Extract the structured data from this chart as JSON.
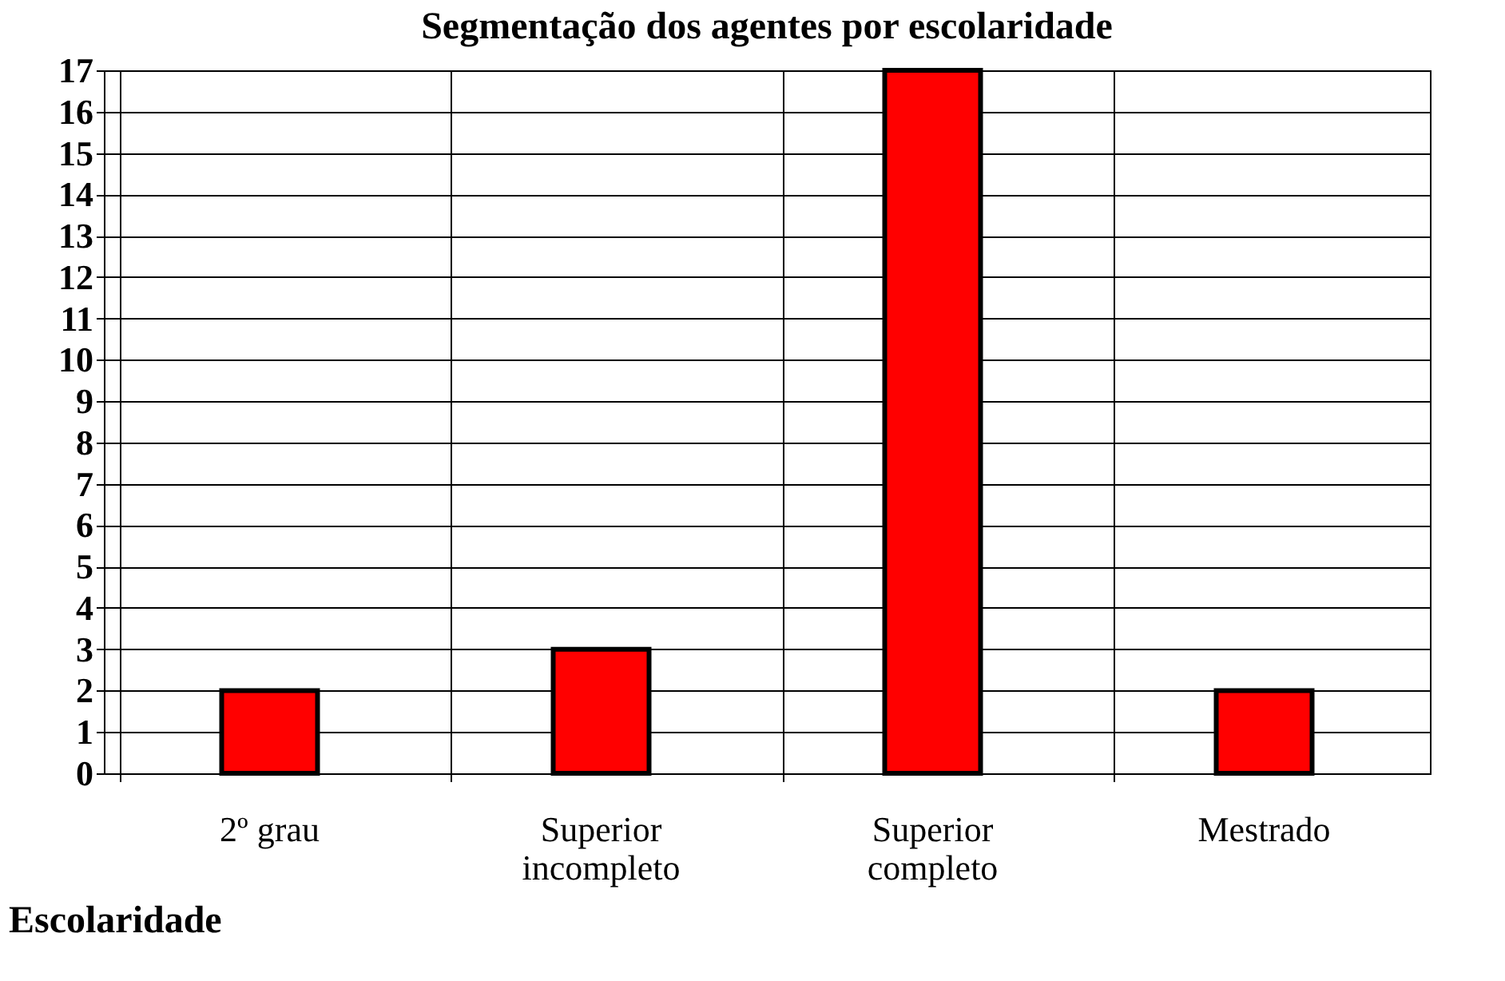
{
  "chart_data": {
    "type": "bar",
    "title": "Segmentação dos agentes por escolaridade",
    "xlabel": "Escolaridade",
    "categories": [
      "2º grau",
      "Superior incompleto",
      "Superior completo",
      "Mestrado"
    ],
    "values": [
      2,
      3,
      17,
      2
    ],
    "color": "#ff0000",
    "ylim": [
      0,
      17
    ],
    "yticks": [
      0,
      1,
      2,
      3,
      4,
      5,
      6,
      7,
      8,
      9,
      10,
      11,
      12,
      13,
      14,
      15,
      16,
      17
    ],
    "grid": true
  }
}
